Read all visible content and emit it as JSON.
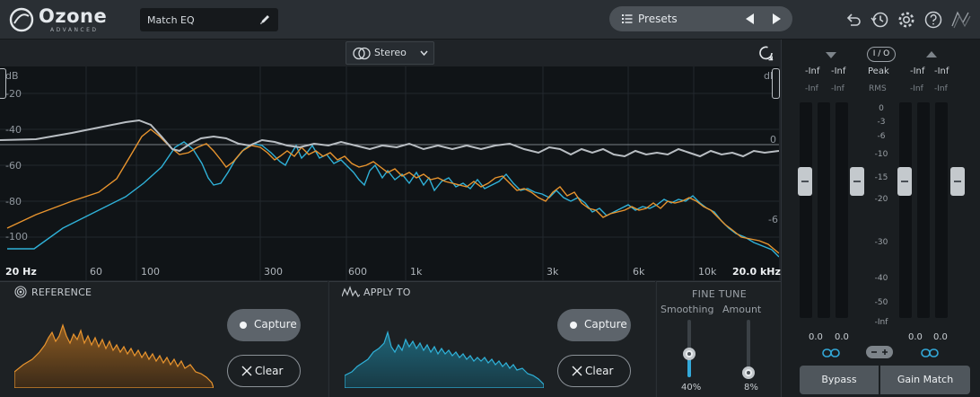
{
  "header": {
    "logo_name": "Ozone",
    "logo_sub": "ADVANCED",
    "module_name": "Match EQ",
    "presets_label": "Presets",
    "icons": [
      "undo-icon",
      "history-icon",
      "settings-icon",
      "help-icon",
      "izotope-logo-icon"
    ]
  },
  "graph": {
    "channel_mode": "Stereo",
    "left_axis_unit": "dB",
    "right_axis_unit": "dB",
    "left_axis_labels": [
      "-20",
      "-40",
      "-60",
      "-80",
      "-100"
    ],
    "right_axis_labels": [
      "0",
      "-6"
    ],
    "freq_labels": [
      "20 Hz",
      "60",
      "100",
      "300",
      "600",
      "1k",
      "3k",
      "6k",
      "10k",
      "20.0 kHz"
    ],
    "curves": {
      "reference": {
        "name": "Reference",
        "color": "#e8942e"
      },
      "apply_to": {
        "name": "Apply To",
        "color": "#2fb1d8"
      },
      "match": {
        "name": "Match curve",
        "color": "#b9bec3"
      }
    }
  },
  "reference": {
    "title": "REFERENCE",
    "capture_label": "Capture",
    "clear_label": "Clear",
    "color": "#e8942e"
  },
  "apply_to": {
    "title": "APPLY TO",
    "capture_label": "Capture",
    "clear_label": "Clear",
    "color": "#2fb1d8"
  },
  "fine_tune": {
    "title": "FINE TUNE",
    "smoothing_label": "Smoothing",
    "smoothing_value": "40%",
    "smoothing_level": 0.4,
    "amount_label": "Amount",
    "amount_value": "8%",
    "amount_level": 0.08
  },
  "meters": {
    "io_label": "I / O",
    "peak_label": "Peak",
    "rms_label": "RMS",
    "input_peak": [
      "-Inf",
      "-Inf"
    ],
    "input_rms": [
      "-Inf",
      "-Inf"
    ],
    "output_peak": [
      "-Inf",
      "-Inf"
    ],
    "output_rms": [
      "-Inf",
      "-Inf"
    ],
    "scale": [
      "0",
      "-3",
      "-6",
      "-10",
      "-15",
      "-20",
      "-30",
      "-40",
      "-50",
      "-Inf"
    ],
    "input_gain": [
      "0.0",
      "0.0"
    ],
    "output_gain": [
      "0.0",
      "0.0"
    ],
    "bypass_label": "Bypass",
    "gain_match_label": "Gain Match"
  }
}
